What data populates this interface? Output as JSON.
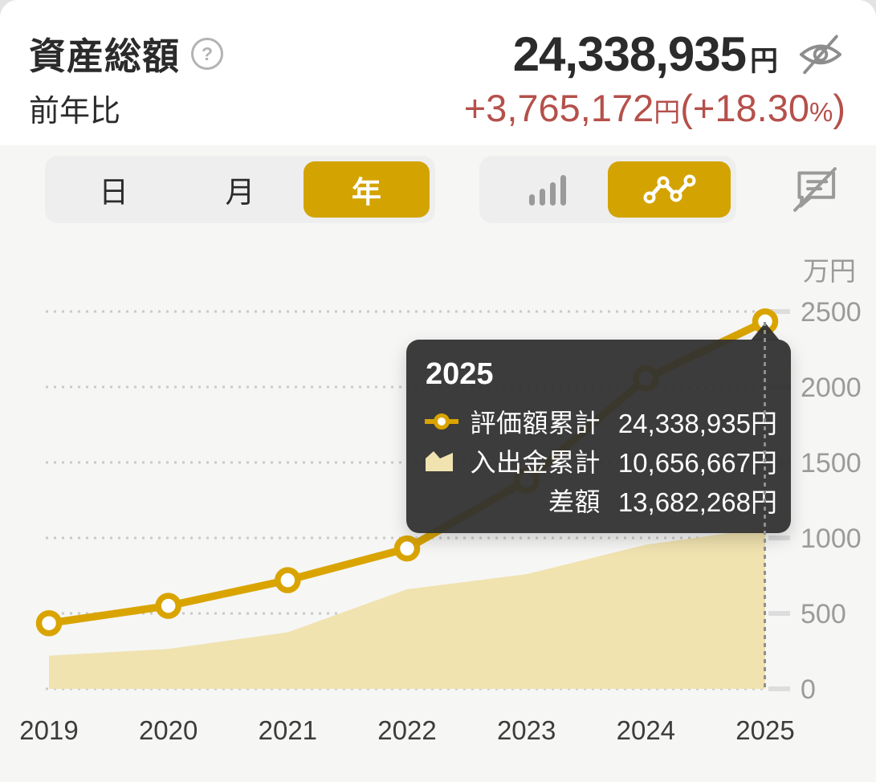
{
  "colors": {
    "accent_gold": "#d3a301",
    "line_gold": "#d9a400",
    "area_fill": "#f0e3b0",
    "change_red": "#b5504b",
    "tooltip_bg": "rgba(48,48,48,0.94)",
    "grid_grey": "#c9c9c9",
    "axis_label_grey": "#9b9b9b",
    "x_label_dark": "#3c3c3c"
  },
  "header": {
    "title": "資産総額",
    "help_icon": "?",
    "total_amount": "24,338,935",
    "currency_unit": "円",
    "yoy_label": "前年比",
    "yoy_amount": "+3,765,172",
    "yoy_amount_unit": "円",
    "yoy_pct_open": "(+18.30",
    "yoy_pct_unit": "%",
    "yoy_pct_close": ")"
  },
  "controls": {
    "period": {
      "options": [
        {
          "label": "日",
          "selected": false
        },
        {
          "label": "月",
          "selected": false
        },
        {
          "label": "年",
          "selected": true
        }
      ]
    },
    "chart_type": {
      "options": [
        {
          "icon": "bar-chart-icon",
          "selected": false
        },
        {
          "icon": "line-chart-icon",
          "selected": true
        }
      ]
    },
    "hide_labels_icon": "annotation-off-icon"
  },
  "chart_data": {
    "type": "line",
    "unit": "万円",
    "x": [
      "2019",
      "2020",
      "2021",
      "2022",
      "2023",
      "2024",
      "2025"
    ],
    "y_axis": {
      "label": "万円",
      "ticks": [
        0,
        500,
        1000,
        1500,
        2000,
        2500
      ],
      "range": [
        0,
        2500
      ],
      "grid": "dotted"
    },
    "series": [
      {
        "name": "評価額累計",
        "type": "line",
        "values_man_yen": [
          435,
          550,
          720,
          930,
          1380,
          2057,
          2434
        ]
      },
      {
        "name": "入出金累計",
        "type": "area",
        "values_man_yen": [
          220,
          265,
          375,
          660,
          760,
          955,
          1066
        ]
      }
    ],
    "selected_x": "2025",
    "legend_position": "tooltip-only"
  },
  "tooltip": {
    "title": "2025",
    "rows": [
      {
        "icon": "line-legend-icon",
        "label": "評価額累計",
        "value": "24,338,935円"
      },
      {
        "icon": "area-legend-icon",
        "label": "入出金累計",
        "value": "10,656,667円"
      },
      {
        "icon": "",
        "label": "差額",
        "value": "13,682,268円"
      }
    ]
  }
}
